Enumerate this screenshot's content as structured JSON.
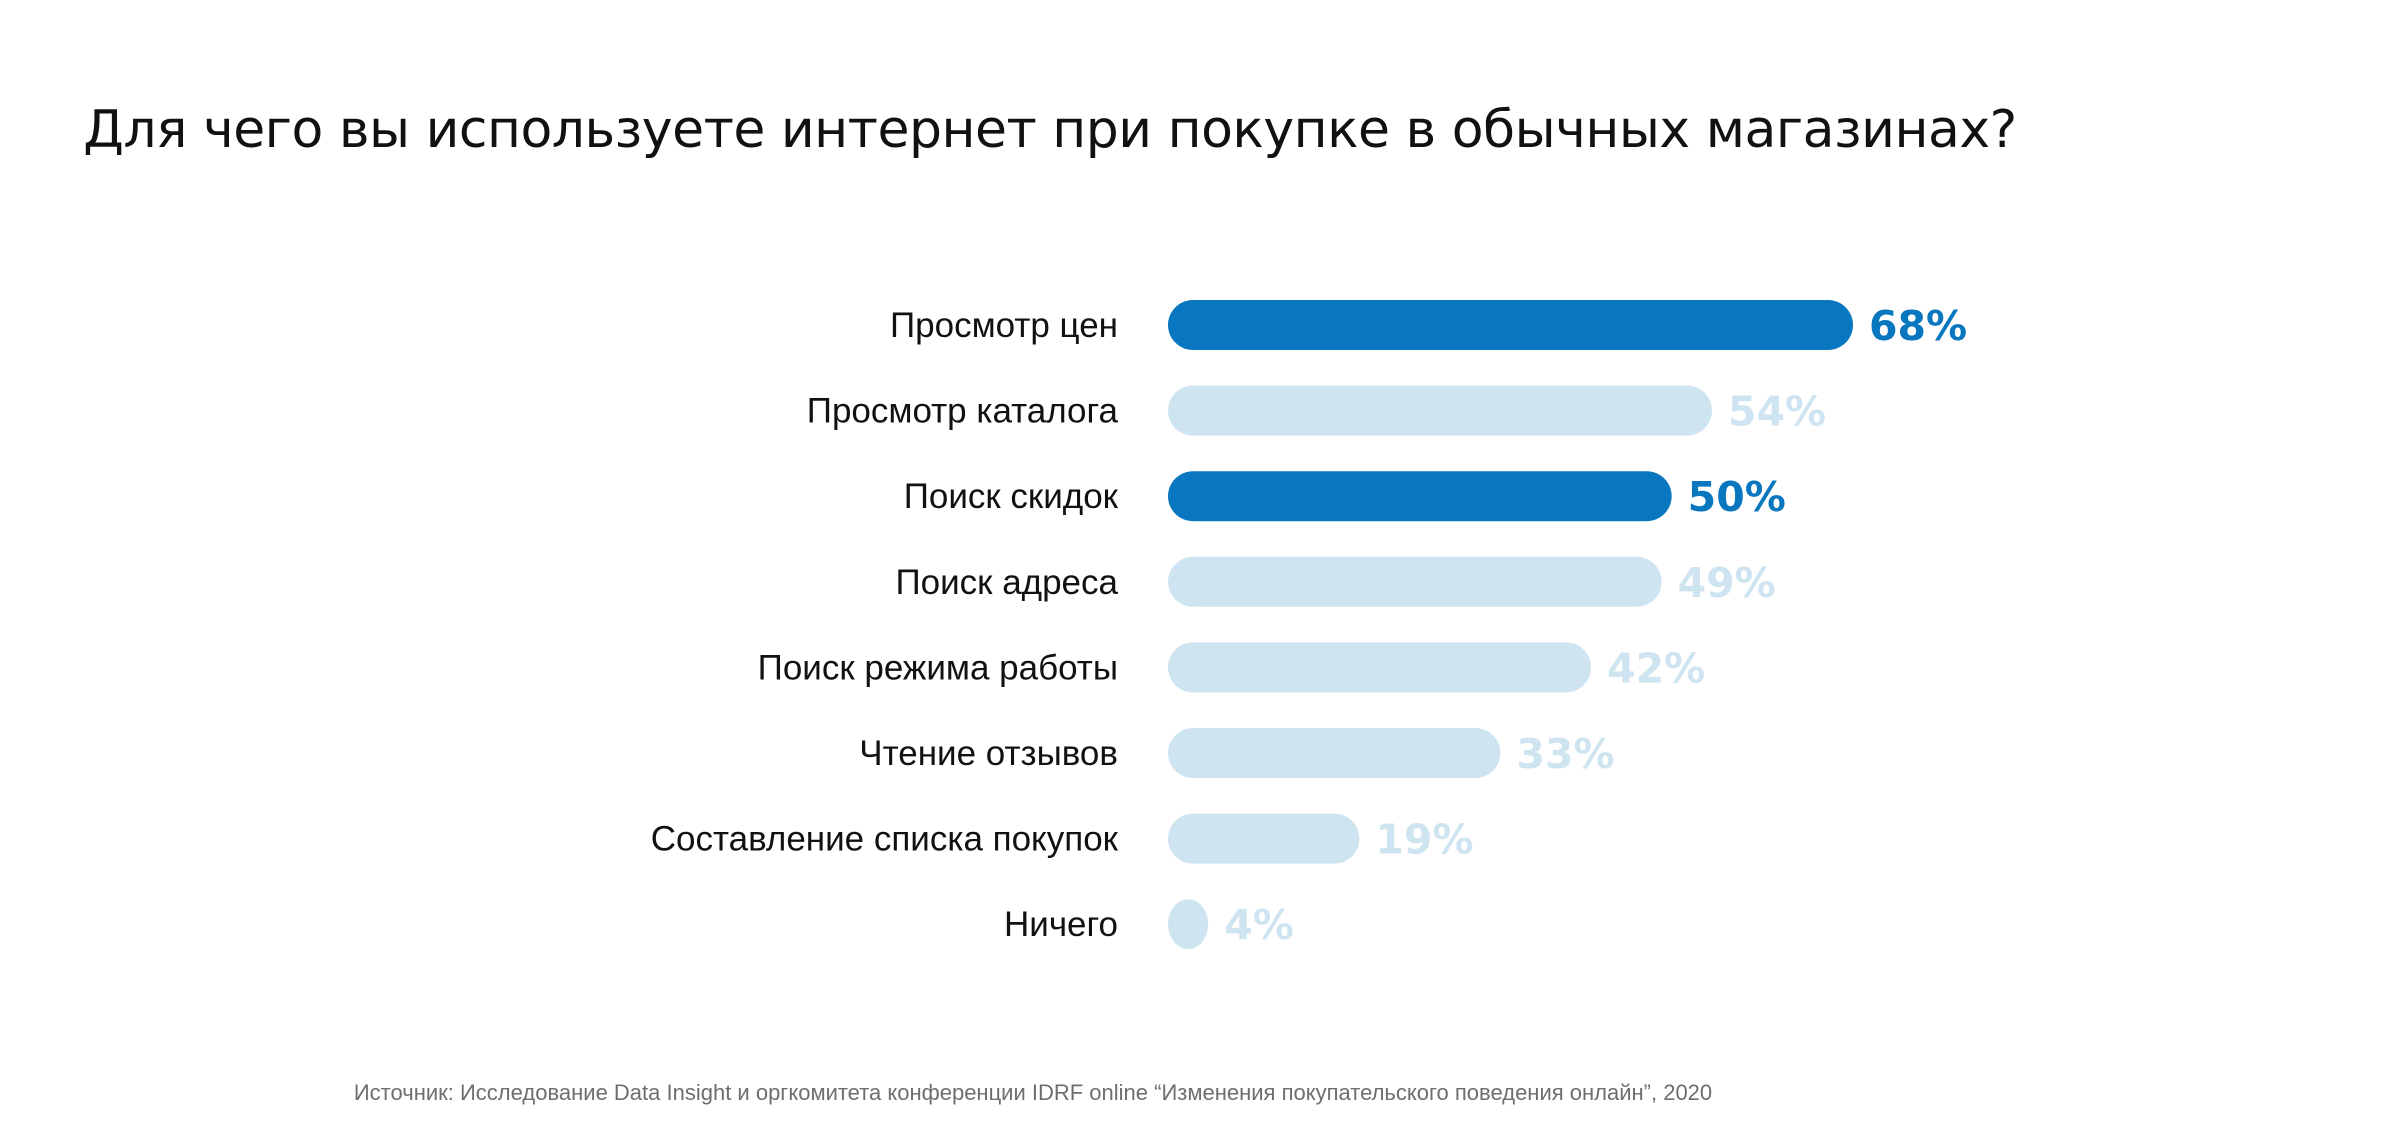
{
  "chart_data": {
    "type": "bar",
    "orientation": "horizontal",
    "title": "Для чего вы используете интернет при покупке в обычных магазинах?",
    "categories": [
      "Просмотр цен",
      "Просмотр каталога",
      "Поиск скидок",
      "Поиск адреса",
      "Поиск режима работы",
      "Чтение отзывов",
      "Составление списка покупок",
      "Ничего"
    ],
    "values": [
      68,
      54,
      50,
      49,
      42,
      33,
      19,
      4
    ],
    "value_labels": [
      "68%",
      "54%",
      "50%",
      "49%",
      "42%",
      "33%",
      "19%",
      "4%"
    ],
    "highlighted": [
      true,
      false,
      true,
      false,
      false,
      false,
      false,
      false
    ],
    "colors": {
      "highlight": "#0877bf",
      "default": "#cfe4f1"
    },
    "xlim": [
      0,
      68
    ],
    "grid": false,
    "legend": "none",
    "xlabel": "",
    "ylabel": ""
  },
  "source": "Источник: Исследование Data Insight и оргкомитета конференции IDRF online “Изменения покупательского поведения онлайн”, 2020"
}
